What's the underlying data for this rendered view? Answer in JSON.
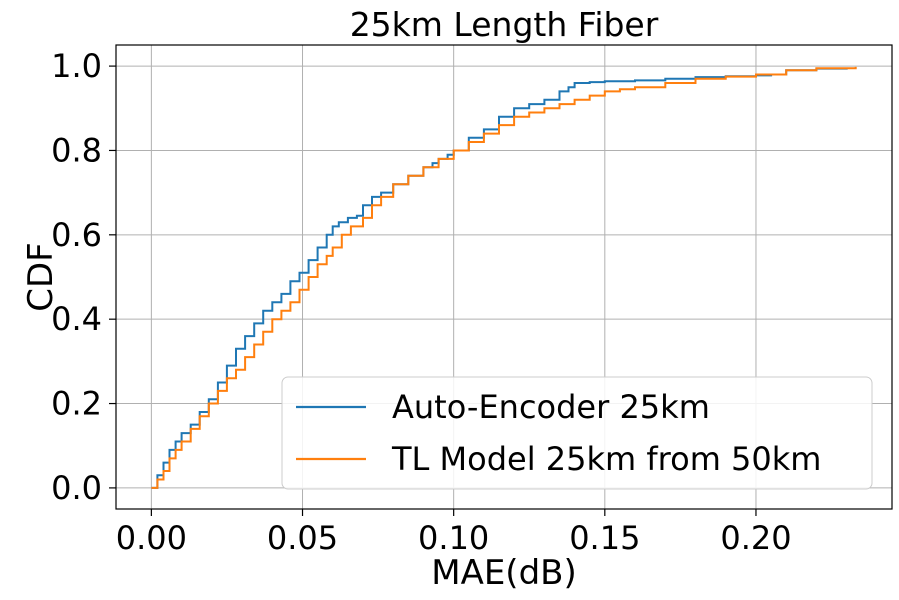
{
  "chart_data": {
    "type": "line",
    "title": "25km Length Fiber",
    "xlabel": "MAE(dB)",
    "ylabel": "CDF",
    "xlim": [
      -0.0117,
      0.245
    ],
    "ylim": [
      -0.05,
      1.05
    ],
    "xticks": [
      0.0,
      0.05,
      0.1,
      0.15,
      0.2
    ],
    "xtick_labels": [
      "0.00",
      "0.05",
      "0.10",
      "0.15",
      "0.20"
    ],
    "yticks": [
      0.0,
      0.2,
      0.4,
      0.6,
      0.8,
      1.0
    ],
    "ytick_labels": [
      "0.0",
      "0.2",
      "0.4",
      "0.6",
      "0.8",
      "1.0"
    ],
    "grid": true,
    "legend_position": "bottom-right",
    "series": [
      {
        "name": "Auto-Encoder 25km",
        "color": "#1f77b4",
        "x": [
          0.0,
          0.002,
          0.004,
          0.006,
          0.008,
          0.01,
          0.013,
          0.016,
          0.019,
          0.022,
          0.025,
          0.028,
          0.031,
          0.034,
          0.037,
          0.04,
          0.043,
          0.046,
          0.049,
          0.052,
          0.055,
          0.058,
          0.06,
          0.062,
          0.065,
          0.068,
          0.07,
          0.073,
          0.076,
          0.08,
          0.085,
          0.09,
          0.093,
          0.095,
          0.098,
          0.1,
          0.105,
          0.11,
          0.115,
          0.12,
          0.125,
          0.13,
          0.135,
          0.138,
          0.14,
          0.145,
          0.15,
          0.16,
          0.17,
          0.18,
          0.19,
          0.2,
          0.205,
          0.21,
          0.22,
          0.23
        ],
        "y": [
          0.0,
          0.03,
          0.06,
          0.09,
          0.11,
          0.13,
          0.15,
          0.18,
          0.21,
          0.25,
          0.29,
          0.33,
          0.36,
          0.39,
          0.42,
          0.44,
          0.46,
          0.49,
          0.51,
          0.54,
          0.57,
          0.6,
          0.62,
          0.63,
          0.64,
          0.645,
          0.67,
          0.69,
          0.7,
          0.72,
          0.74,
          0.76,
          0.77,
          0.78,
          0.79,
          0.8,
          0.83,
          0.85,
          0.88,
          0.9,
          0.91,
          0.92,
          0.94,
          0.95,
          0.96,
          0.962,
          0.964,
          0.966,
          0.97,
          0.974,
          0.976,
          0.978,
          0.98,
          0.99,
          0.994,
          0.996
        ]
      },
      {
        "name": "TL Model 25km from 50km",
        "color": "#ff7f0e",
        "x": [
          0.0,
          0.002,
          0.004,
          0.006,
          0.008,
          0.01,
          0.013,
          0.016,
          0.019,
          0.022,
          0.025,
          0.028,
          0.031,
          0.034,
          0.037,
          0.04,
          0.043,
          0.046,
          0.049,
          0.052,
          0.055,
          0.058,
          0.06,
          0.063,
          0.066,
          0.07,
          0.073,
          0.076,
          0.08,
          0.085,
          0.09,
          0.095,
          0.1,
          0.105,
          0.11,
          0.115,
          0.12,
          0.125,
          0.13,
          0.135,
          0.14,
          0.145,
          0.15,
          0.155,
          0.16,
          0.17,
          0.18,
          0.19,
          0.2,
          0.21,
          0.22,
          0.233
        ],
        "y": [
          0.0,
          0.02,
          0.04,
          0.07,
          0.09,
          0.11,
          0.14,
          0.17,
          0.2,
          0.23,
          0.26,
          0.28,
          0.31,
          0.34,
          0.37,
          0.4,
          0.42,
          0.44,
          0.47,
          0.5,
          0.53,
          0.55,
          0.57,
          0.6,
          0.62,
          0.64,
          0.67,
          0.69,
          0.72,
          0.74,
          0.76,
          0.78,
          0.8,
          0.82,
          0.84,
          0.86,
          0.88,
          0.89,
          0.9,
          0.91,
          0.92,
          0.93,
          0.94,
          0.945,
          0.95,
          0.96,
          0.97,
          0.975,
          0.98,
          0.99,
          0.995,
          0.998
        ]
      }
    ]
  }
}
